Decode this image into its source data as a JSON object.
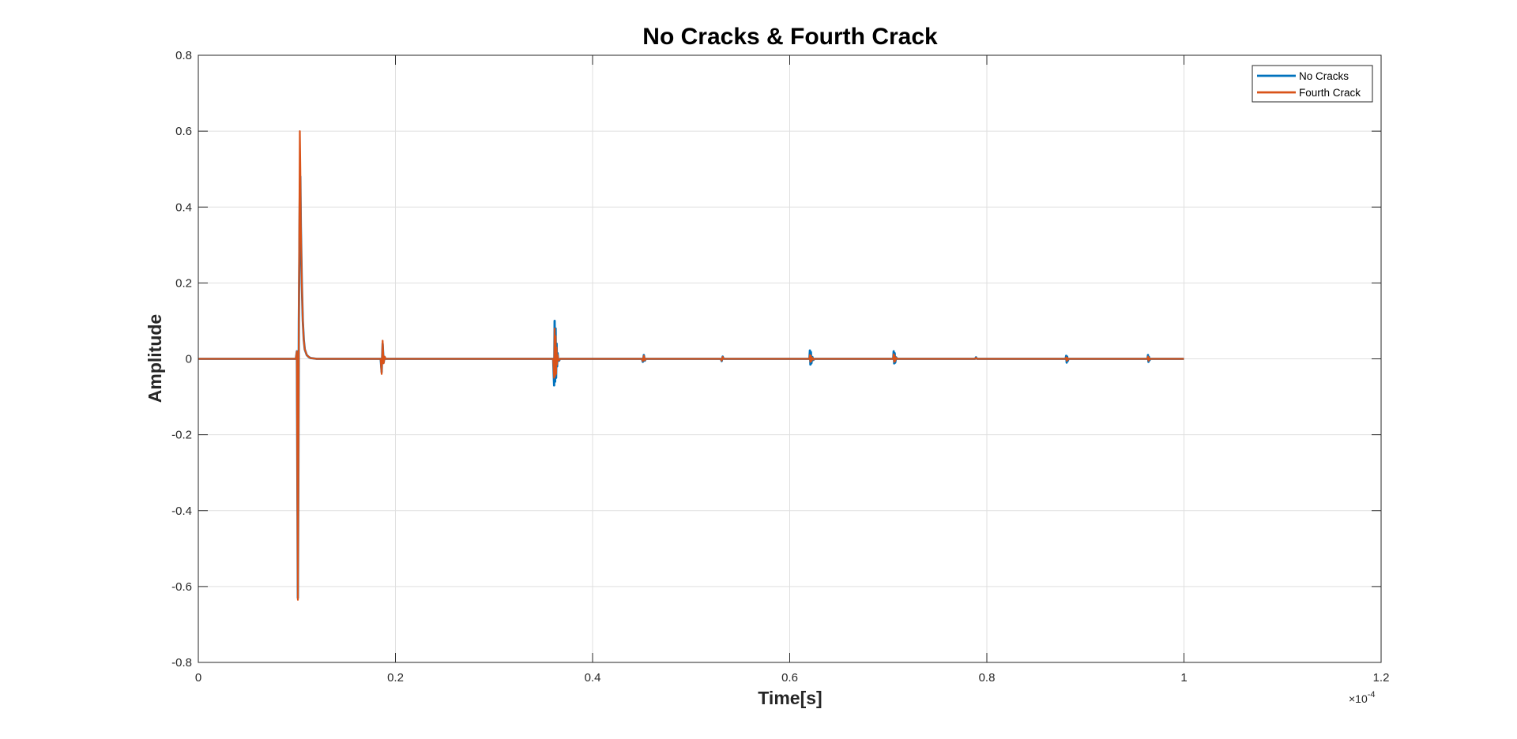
{
  "chart_data": {
    "type": "line",
    "title": "No Cracks & Fourth Crack",
    "xlabel": "Time[s]",
    "ylabel": "Amplitude",
    "x_exponent_label": "×10",
    "x_exponent_power": "-4",
    "xlim": [
      0,
      1.2
    ],
    "ylim": [
      -0.8,
      0.8
    ],
    "xticks": [
      0,
      0.2,
      0.4,
      0.6,
      0.8,
      1,
      1.2
    ],
    "xtick_labels": [
      "0",
      "0.2",
      "0.4",
      "0.6",
      "0.8",
      "1",
      "1.2"
    ],
    "yticks": [
      -0.8,
      -0.6,
      -0.4,
      -0.2,
      0,
      0.2,
      0.4,
      0.6,
      0.8
    ],
    "ytick_labels": [
      "-0.8",
      "-0.6",
      "-0.4",
      "-0.2",
      "0",
      "0.2",
      "0.4",
      "0.6",
      "0.8"
    ],
    "grid": true,
    "legend_position": "top-right",
    "series": [
      {
        "name": "No Cracks",
        "color": "#0072BD",
        "x": [
          0,
          0.099,
          0.1,
          0.101,
          0.1015,
          0.102,
          0.103,
          0.1035,
          0.104,
          0.105,
          0.106,
          0.107,
          0.108,
          0.11,
          0.112,
          0.114,
          0.117,
          0.12,
          0.185,
          0.186,
          0.187,
          0.188,
          0.189,
          0.19,
          0.36,
          0.361,
          0.3615,
          0.362,
          0.3625,
          0.363,
          0.3635,
          0.364,
          0.3645,
          0.365,
          0.366,
          0.367,
          0.45,
          0.451,
          0.452,
          0.453,
          0.454,
          0.53,
          0.531,
          0.532,
          0.533,
          0.62,
          0.6205,
          0.621,
          0.6215,
          0.622,
          0.623,
          0.624,
          0.625,
          0.705,
          0.7055,
          0.706,
          0.7065,
          0.707,
          0.708,
          0.709,
          0.788,
          0.789,
          0.79,
          0.88,
          0.8805,
          0.881,
          0.8815,
          0.882,
          0.883,
          0.963,
          0.9635,
          0.964,
          0.9645,
          0.965,
          0.966,
          1.0
        ],
        "y": [
          0,
          0,
          0.02,
          -0.63,
          -0.3,
          0.1,
          0.45,
          0.48,
          0.35,
          0.2,
          0.1,
          0.05,
          0.025,
          0.01,
          0.005,
          0.002,
          0.001,
          0,
          0,
          -0.035,
          0.04,
          -0.01,
          0.005,
          0,
          0,
          -0.07,
          0.1,
          -0.06,
          0.08,
          -0.05,
          0.04,
          -0.02,
          0.015,
          0,
          -0.005,
          0,
          0,
          -0.008,
          0.01,
          -0.005,
          0,
          0,
          -0.006,
          0.006,
          0,
          0,
          0.022,
          -0.015,
          0.018,
          -0.012,
          0.005,
          -0.003,
          0,
          0,
          0.02,
          -0.012,
          0.015,
          -0.01,
          0.004,
          0,
          0,
          0.004,
          0,
          0,
          0.008,
          -0.01,
          0.006,
          -0.006,
          0,
          0,
          0.01,
          -0.008,
          0.005,
          -0.004,
          0,
          0
        ]
      },
      {
        "name": "Fourth Crack",
        "color": "#D95319",
        "x": [
          0,
          0.099,
          0.1,
          0.101,
          0.1015,
          0.102,
          0.103,
          0.1035,
          0.104,
          0.105,
          0.106,
          0.107,
          0.108,
          0.11,
          0.112,
          0.114,
          0.117,
          0.12,
          0.185,
          0.186,
          0.187,
          0.188,
          0.189,
          0.19,
          0.36,
          0.361,
          0.3615,
          0.362,
          0.3625,
          0.363,
          0.3635,
          0.364,
          0.3645,
          0.365,
          0.366,
          0.367,
          0.45,
          0.451,
          0.452,
          0.453,
          0.454,
          0.53,
          0.531,
          0.532,
          0.533,
          0.62,
          0.6205,
          0.621,
          0.6215,
          0.622,
          0.623,
          0.624,
          0.625,
          0.705,
          0.7055,
          0.706,
          0.7065,
          0.707,
          0.708,
          0.709,
          0.788,
          0.789,
          0.79,
          0.88,
          0.8805,
          0.881,
          0.8815,
          0.882,
          0.883,
          0.963,
          0.9635,
          0.964,
          0.9645,
          0.965,
          0.966,
          1.0
        ],
        "y": [
          0,
          0,
          0.02,
          -0.635,
          -0.3,
          0.12,
          0.6,
          0.5,
          0.35,
          0.2,
          0.1,
          0.05,
          0.025,
          0.01,
          0.005,
          0.002,
          0.001,
          0,
          0,
          -0.04,
          0.048,
          -0.012,
          0.006,
          0,
          0,
          -0.05,
          0.08,
          -0.045,
          0.06,
          -0.04,
          0.03,
          -0.015,
          0.01,
          0,
          -0.004,
          0,
          0,
          -0.006,
          0.008,
          -0.004,
          0,
          0,
          -0.005,
          0.005,
          0,
          0,
          0.01,
          -0.008,
          0.008,
          -0.006,
          0.003,
          -0.002,
          0,
          0,
          0.012,
          -0.008,
          0.008,
          -0.006,
          0.003,
          0,
          0,
          0.003,
          0,
          0,
          0.004,
          -0.005,
          0.003,
          -0.003,
          0,
          0,
          0.006,
          -0.005,
          0.003,
          -0.002,
          0,
          0
        ]
      }
    ]
  }
}
